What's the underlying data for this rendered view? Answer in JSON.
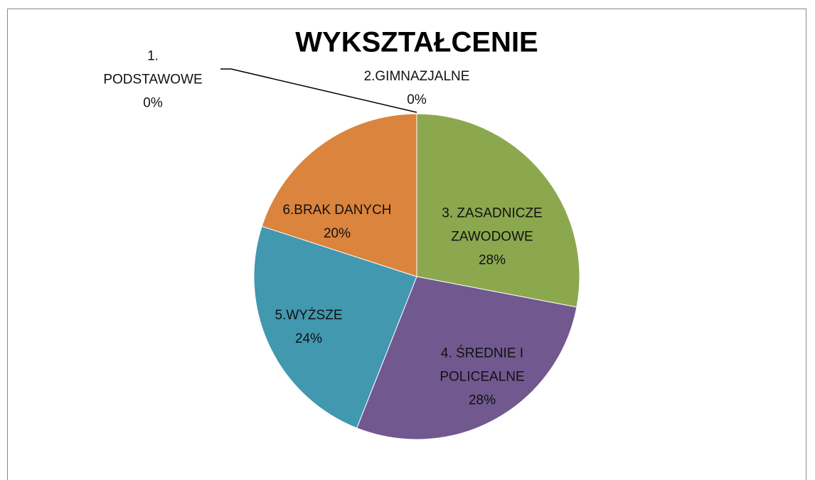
{
  "chart_data": {
    "type": "pie",
    "title": "WYKSZTAŁCENIE",
    "categories": [
      "1. PODSTAWOWE",
      "2.GIMNAZJALNE",
      "3. ZASADNICZE ZAWODOWE",
      "4. ŚREDNIE I POLICEALNE",
      "5.WYŻSZE",
      "6.BRAK DANYCH"
    ],
    "values": [
      0,
      0,
      28,
      28,
      24,
      20
    ],
    "value_labels": [
      "0%",
      "0%",
      "28%",
      "28%",
      "24%",
      "20%"
    ],
    "colors": [
      "#4f81bd",
      "#c0504d",
      "#8ba84e",
      "#71588f",
      "#4198af",
      "#db843d"
    ]
  }
}
